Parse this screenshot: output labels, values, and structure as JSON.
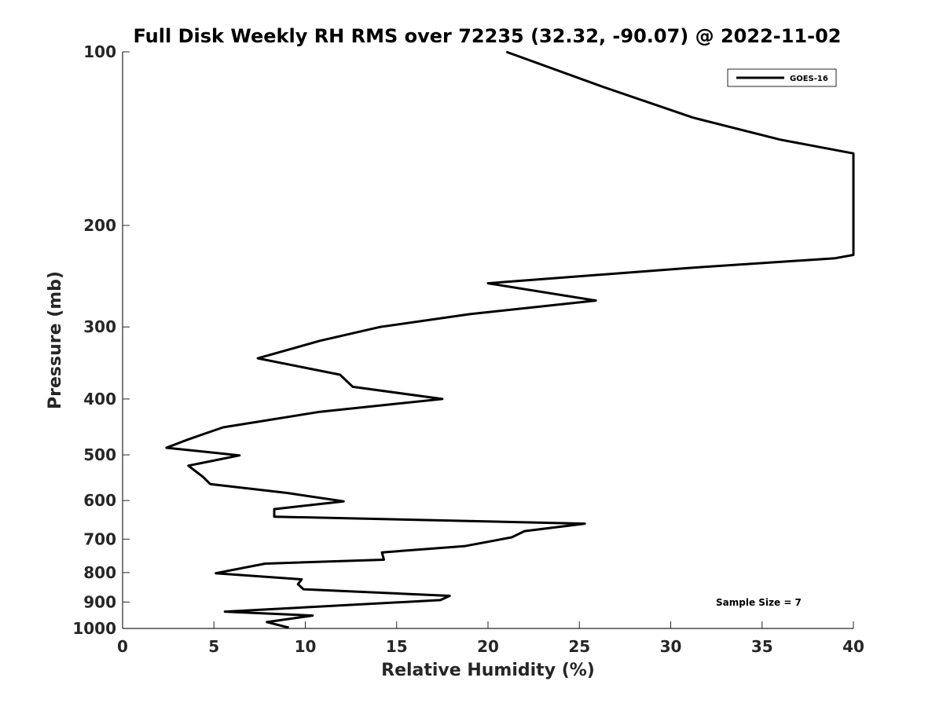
{
  "chart_data": {
    "type": "line",
    "title": "Full Disk Weekly RH RMS over 72235 (32.32, -90.07) @ 2022-11-02",
    "xlabel": "Relative Humidity (%)",
    "ylabel": "Pressure (mb)",
    "xlim": [
      0,
      40
    ],
    "ylim": [
      100,
      1000
    ],
    "y_scale": "log",
    "y_reversed": true,
    "grid": false,
    "legend_position": "top-right",
    "x_ticks": [
      0,
      5,
      10,
      15,
      20,
      25,
      30,
      35,
      40
    ],
    "y_ticks": [
      100,
      200,
      300,
      400,
      500,
      600,
      700,
      800,
      900,
      1000
    ],
    "series": [
      {
        "name": "GOES-16",
        "color": "#000000",
        "points": [
          [
            21.0,
            100
          ],
          [
            26.3,
            115
          ],
          [
            31.2,
            130
          ],
          [
            36.0,
            142
          ],
          [
            40.0,
            150
          ],
          [
            40.0,
            225
          ],
          [
            39.0,
            228
          ],
          [
            31.0,
            237
          ],
          [
            20.0,
            252
          ],
          [
            25.9,
            270
          ],
          [
            19.0,
            285
          ],
          [
            14.1,
            300
          ],
          [
            10.8,
            317
          ],
          [
            7.4,
            340
          ],
          [
            11.9,
            363
          ],
          [
            12.6,
            381
          ],
          [
            17.5,
            400
          ],
          [
            10.8,
            421
          ],
          [
            5.5,
            448
          ],
          [
            3.6,
            470
          ],
          [
            2.4,
            486
          ],
          [
            6.4,
            501
          ],
          [
            3.6,
            522
          ],
          [
            4.4,
            546
          ],
          [
            4.8,
            562
          ],
          [
            9.0,
            582
          ],
          [
            12.1,
            602
          ],
          [
            8.3,
            621
          ],
          [
            8.3,
            640
          ],
          [
            25.3,
            658
          ],
          [
            22.0,
            678
          ],
          [
            21.3,
            695
          ],
          [
            18.7,
            720
          ],
          [
            14.2,
            738
          ],
          [
            14.3,
            760
          ],
          [
            7.8,
            772
          ],
          [
            5.1,
            802
          ],
          [
            9.8,
            822
          ],
          [
            9.6,
            838
          ],
          [
            9.9,
            855
          ],
          [
            17.9,
            878
          ],
          [
            17.4,
            893
          ],
          [
            5.6,
            935
          ],
          [
            10.4,
            950
          ],
          [
            7.9,
            975
          ],
          [
            9.1,
            997
          ]
        ]
      }
    ],
    "annotations": [
      "Sample Size = 7"
    ]
  }
}
